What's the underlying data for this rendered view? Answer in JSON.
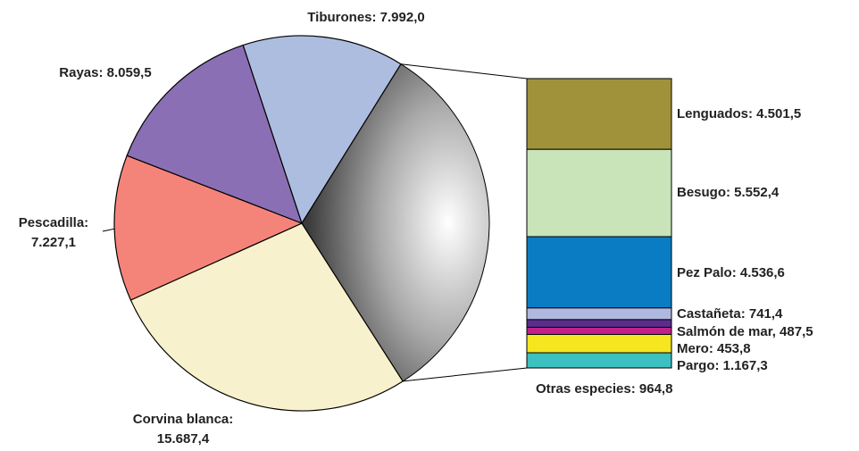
{
  "chart_data": {
    "type": "pie-of-bar",
    "pie": {
      "labels": [
        [
          "Corvina blanca:",
          "15.687,4"
        ],
        [
          "Pescadilla:",
          "7.227,1"
        ],
        [
          "Rayas: 8.059,5"
        ],
        [
          "Tiburones: 7.992,0"
        ]
      ],
      "values": [
        15687.4,
        7227.1,
        8059.5,
        7992.0
      ],
      "colors": [
        "#f8f1cd",
        "#f4847a",
        "#8b6fb5",
        "#adbde0"
      ]
    },
    "bar": {
      "labels": [
        "Lenguados: 4.501,5",
        "Besugo: 5.552,4",
        "Pez Palo: 4.536,6",
        "Castañeta: 741,4",
        "Salmón de mar, 487,5",
        "Mero: 453,8",
        "Pargo: 1.167,3",
        "Otras especies: 964,8"
      ],
      "values": [
        4501.5,
        5552.4,
        4536.6,
        741.4,
        487.5,
        453.8,
        1167.3,
        964.8
      ],
      "colors": [
        "#a0923a",
        "#c8e4b8",
        "#0a7cc4",
        "#b0b8e0",
        "#5a2d8c",
        "#c0208a",
        "#f5e620",
        "#3cc0c0"
      ]
    }
  }
}
